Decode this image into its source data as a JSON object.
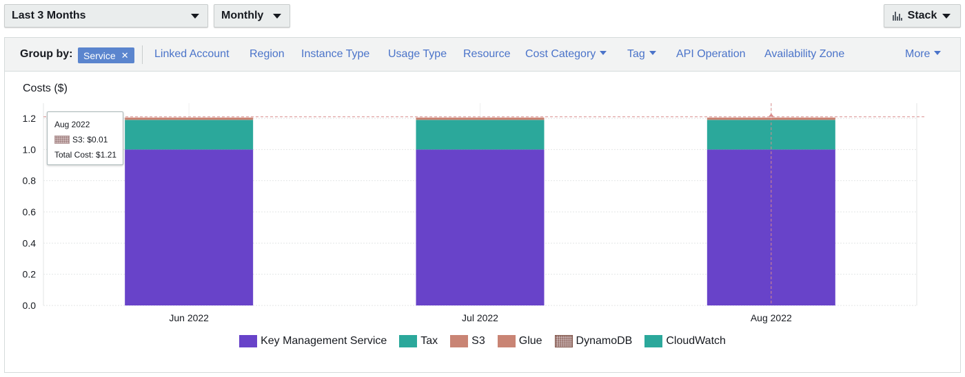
{
  "toolbar": {
    "range_label": "Last 3 Months",
    "granularity_label": "Monthly",
    "chart_style_label": "Stack"
  },
  "group_by": {
    "label": "Group by:",
    "active_chip": "Service",
    "links": [
      {
        "label": "Linked Account",
        "dropdown": false
      },
      {
        "label": "Region",
        "dropdown": false
      },
      {
        "label": "Instance Type",
        "dropdown": false
      },
      {
        "label": "Usage Type",
        "dropdown": false
      },
      {
        "label": "Resource",
        "dropdown": false
      },
      {
        "label": "Cost Category",
        "dropdown": true
      },
      {
        "label": "Tag",
        "dropdown": true
      },
      {
        "label": "API Operation",
        "dropdown": false
      },
      {
        "label": "Availability Zone",
        "dropdown": false
      }
    ],
    "more_label": "More"
  },
  "chart": {
    "ylabel": "Costs ($)"
  },
  "tooltip": {
    "period": "Aug 2022",
    "line": "S3: $0.01",
    "total": "Total Cost: $1.21"
  },
  "chart_data": {
    "type": "bar",
    "stacked": true,
    "categories": [
      "Jun 2022",
      "Jul 2022",
      "Aug 2022"
    ],
    "ylabel": "Costs ($)",
    "ylim": [
      0,
      1.2
    ],
    "yticks": [
      "0.0",
      "0.2",
      "0.4",
      "0.6",
      "0.8",
      "1.0",
      "1.2"
    ],
    "grid": true,
    "legend_placement": "bottom",
    "reference_line": 1.21,
    "series": [
      {
        "name": "Key Management Service",
        "color": "#6843c9",
        "values": [
          1.0,
          1.0,
          1.0
        ]
      },
      {
        "name": "Tax",
        "color": "#2ba89b",
        "values": [
          0.19,
          0.19,
          0.19
        ]
      },
      {
        "name": "S3",
        "color": "#c98474",
        "values": [
          0.01,
          0.01,
          0.01
        ]
      },
      {
        "name": "Glue",
        "color": "#c98474",
        "values": [
          0.005,
          0.005,
          0.005
        ]
      },
      {
        "name": "DynamoDB",
        "color": "#7a4b3f",
        "pattern": "dotted",
        "values": [
          0.0,
          0.0,
          0.0
        ]
      },
      {
        "name": "CloudWatch",
        "color": "#2ba89b",
        "values": [
          0.0,
          0.0,
          0.0
        ]
      }
    ]
  }
}
